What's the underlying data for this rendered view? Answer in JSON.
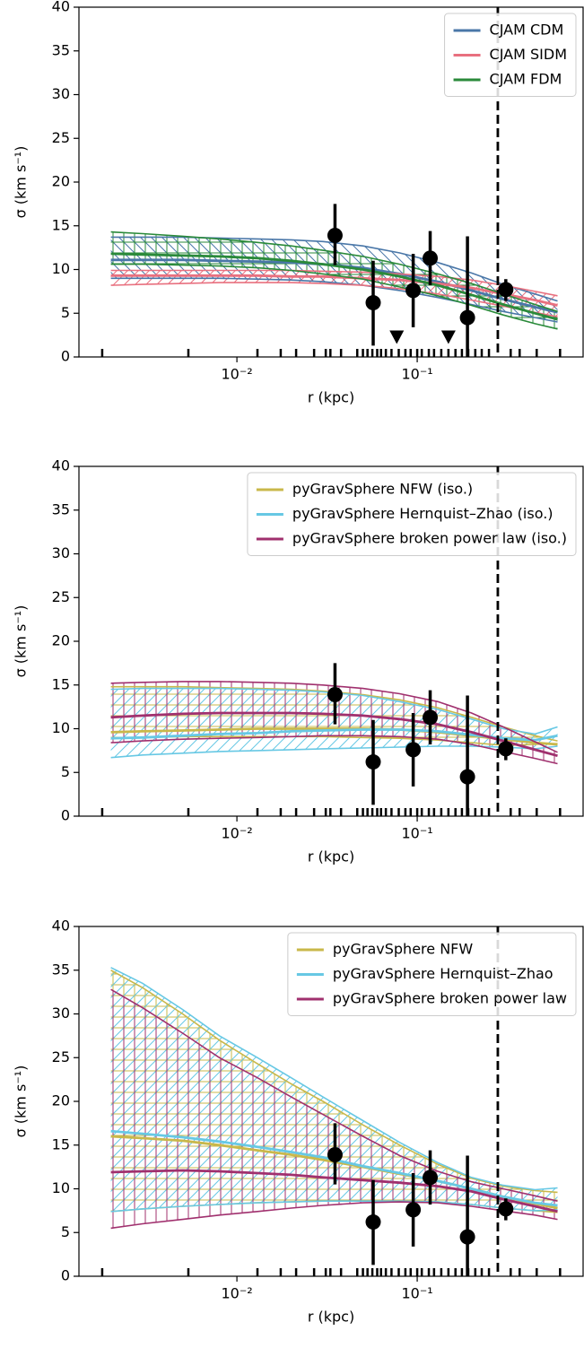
{
  "chart_data": [
    {
      "type": "line",
      "xlabel": "r (kpc)",
      "ylabel": "σ (km s⁻¹)",
      "log_x": true,
      "xlim": [
        0.00133,
        0.832
      ],
      "ylim": [
        0,
        40
      ],
      "xticks": [
        {
          "value": 0.01,
          "label": "10⁻²"
        },
        {
          "value": 0.1,
          "label": "10⁻¹"
        }
      ],
      "yticks": [
        0,
        5,
        10,
        15,
        20,
        25,
        30,
        35,
        40
      ],
      "legend": "upper right",
      "x": [
        0.002,
        0.003,
        0.005,
        0.008,
        0.013,
        0.02,
        0.03,
        0.05,
        0.08,
        0.13,
        0.2,
        0.3,
        0.45,
        0.6
      ],
      "series": [
        {
          "name": "CJAM CDM",
          "color": "#4a77a8",
          "hatch": "\\",
          "values": [
            11.1,
            11.1,
            11.1,
            11.0,
            10.9,
            10.8,
            10.6,
            10.2,
            9.5,
            8.6,
            7.6,
            6.6,
            5.7,
            5.1
          ],
          "upper": [
            13.7,
            13.7,
            13.7,
            13.6,
            13.5,
            13.4,
            13.2,
            12.7,
            11.9,
            10.8,
            9.6,
            8.3,
            7.2,
            6.4
          ],
          "lower": [
            9.0,
            9.0,
            9.0,
            9.0,
            8.9,
            8.8,
            8.6,
            8.2,
            7.6,
            6.8,
            6.0,
            5.2,
            4.5,
            4.0
          ]
        },
        {
          "name": "CJAM SIDM",
          "color": "#e8707f",
          "hatch": "/",
          "values": [
            9.3,
            9.3,
            9.3,
            9.3,
            9.3,
            9.2,
            9.2,
            9.0,
            8.8,
            8.4,
            7.9,
            7.2,
            6.5,
            5.9
          ],
          "upper": [
            9.9,
            9.9,
            9.9,
            9.9,
            9.9,
            9.9,
            9.8,
            9.7,
            9.5,
            9.2,
            8.8,
            8.2,
            7.5,
            7.0
          ],
          "lower": [
            8.2,
            8.3,
            8.4,
            8.5,
            8.5,
            8.5,
            8.4,
            8.2,
            7.8,
            7.2,
            6.5,
            5.8,
            5.1,
            4.6
          ]
        },
        {
          "name": "CJAM FDM",
          "color": "#2a8a3a",
          "hatch": "+",
          "values": [
            11.8,
            11.7,
            11.6,
            11.5,
            11.3,
            11.0,
            10.6,
            10.0,
            9.2,
            8.2,
            7.1,
            6.0,
            5.0,
            4.3
          ],
          "upper": [
            14.3,
            14.1,
            13.8,
            13.5,
            13.1,
            12.7,
            12.2,
            11.5,
            10.6,
            9.5,
            8.4,
            7.2,
            6.0,
            5.2
          ],
          "lower": [
            10.6,
            10.6,
            10.5,
            10.4,
            10.2,
            9.9,
            9.5,
            8.9,
            8.0,
            7.0,
            5.9,
            4.8,
            3.8,
            3.2
          ]
        }
      ],
      "observations": {
        "x": [
          0.035,
          0.057,
          0.095,
          0.118,
          0.19,
          0.31
        ],
        "values": [
          13.9,
          6.2,
          7.6,
          11.3,
          4.5,
          7.7
        ],
        "error_low": [
          3.4,
          4.9,
          4.2,
          3.1,
          4.5,
          1.3
        ],
        "error_high": [
          3.6,
          4.8,
          4.2,
          3.1,
          9.3,
          1.2
        ]
      },
      "upper_limits": {
        "x": [
          0.077,
          0.149
        ],
        "values": [
          2.2,
          2.2
        ]
      },
      "vline": 0.28,
      "rug_x": [
        0.00179,
        0.00538,
        0.013,
        0.0175,
        0.0213,
        0.0268,
        0.0311,
        0.033,
        0.0378,
        0.0465,
        0.05,
        0.053,
        0.0564,
        0.06,
        0.063,
        0.067,
        0.072,
        0.079,
        0.086,
        0.092,
        0.1,
        0.106,
        0.116,
        0.124,
        0.136,
        0.149,
        0.163,
        0.177,
        0.192,
        0.21,
        0.228,
        0.25,
        0.33,
        0.37,
        0.46,
        0.62
      ]
    },
    {
      "type": "line",
      "xlabel": "r (kpc)",
      "ylabel": "σ (km s⁻¹)",
      "log_x": true,
      "xlim": [
        0.00133,
        0.832
      ],
      "ylim": [
        0,
        40
      ],
      "xticks": [
        {
          "value": 0.01,
          "label": "10⁻²"
        },
        {
          "value": 0.1,
          "label": "10⁻¹"
        }
      ],
      "yticks": [
        0,
        5,
        10,
        15,
        20,
        25,
        30,
        35,
        40
      ],
      "legend": "upper right",
      "x": [
        0.002,
        0.003,
        0.005,
        0.008,
        0.013,
        0.02,
        0.03,
        0.05,
        0.08,
        0.13,
        0.2,
        0.3,
        0.45,
        0.6
      ],
      "series": [
        {
          "name": "pyGravSphere NFW (iso.)",
          "color": "#c9b84a",
          "hatch": "-",
          "values": [
            9.6,
            9.7,
            9.8,
            9.9,
            10.0,
            10.0,
            10.0,
            10.0,
            9.9,
            9.6,
            9.2,
            8.8,
            8.4,
            8.2
          ],
          "upper": [
            14.8,
            14.8,
            14.8,
            14.7,
            14.6,
            14.5,
            14.3,
            13.9,
            13.3,
            12.4,
            11.3,
            10.2,
            9.2,
            8.6
          ],
          "lower": [
            9.0,
            9.0,
            9.1,
            9.1,
            9.1,
            9.1,
            9.1,
            9.0,
            8.9,
            8.7,
            8.4,
            8.1,
            8.2,
            8.3
          ]
        },
        {
          "name": "pyGravSphere Hernquist–Zhao (iso.)",
          "color": "#67c8e4",
          "hatch": "/",
          "values": [
            8.9,
            9.0,
            9.2,
            9.4,
            9.5,
            9.7,
            9.8,
            9.9,
            9.9,
            9.7,
            9.3,
            8.9,
            8.7,
            9.2
          ],
          "upper": [
            14.5,
            14.6,
            14.6,
            14.6,
            14.5,
            14.4,
            14.2,
            13.8,
            13.1,
            12.2,
            11.1,
            10.0,
            9.4,
            10.2
          ],
          "lower": [
            6.7,
            7.0,
            7.2,
            7.4,
            7.5,
            7.6,
            7.7,
            7.8,
            7.9,
            8.0,
            8.0,
            7.9,
            7.7,
            8.0
          ]
        },
        {
          "name": "pyGravSphere broken power law (iso.)",
          "color": "#a0306e",
          "hatch": "|",
          "values": [
            11.3,
            11.5,
            11.7,
            11.8,
            11.8,
            11.8,
            11.7,
            11.5,
            11.1,
            10.5,
            9.6,
            8.6,
            7.6,
            6.9
          ],
          "upper": [
            15.2,
            15.3,
            15.4,
            15.4,
            15.3,
            15.2,
            15.0,
            14.6,
            14.0,
            13.1,
            11.8,
            10.2,
            8.5,
            7.3
          ],
          "lower": [
            8.4,
            8.6,
            8.8,
            8.9,
            9.0,
            9.1,
            9.2,
            9.2,
            9.1,
            8.8,
            8.2,
            7.4,
            6.6,
            6.0
          ]
        }
      ],
      "observations": {
        "x": [
          0.035,
          0.057,
          0.095,
          0.118,
          0.19,
          0.31
        ],
        "values": [
          13.9,
          6.2,
          7.6,
          11.3,
          4.5,
          7.7
        ],
        "error_low": [
          3.4,
          4.9,
          4.2,
          3.1,
          4.5,
          1.3
        ],
        "error_high": [
          3.6,
          4.8,
          4.2,
          3.1,
          9.3,
          1.2
        ]
      },
      "vline": 0.28,
      "rug_x": [
        0.00179,
        0.00538,
        0.013,
        0.0175,
        0.0213,
        0.0268,
        0.0311,
        0.033,
        0.0378,
        0.0465,
        0.05,
        0.053,
        0.0564,
        0.06,
        0.063,
        0.067,
        0.072,
        0.079,
        0.086,
        0.092,
        0.1,
        0.106,
        0.116,
        0.124,
        0.136,
        0.149,
        0.163,
        0.177,
        0.192,
        0.21,
        0.228,
        0.25,
        0.33,
        0.37,
        0.46,
        0.62
      ]
    },
    {
      "type": "line",
      "xlabel": "r (kpc)",
      "ylabel": "σ (km s⁻¹)",
      "log_x": true,
      "xlim": [
        0.00133,
        0.832
      ],
      "ylim": [
        0,
        40
      ],
      "xticks": [
        {
          "value": 0.01,
          "label": "10⁻²"
        },
        {
          "value": 0.1,
          "label": "10⁻¹"
        }
      ],
      "yticks": [
        0,
        5,
        10,
        15,
        20,
        25,
        30,
        35,
        40
      ],
      "legend": "upper right",
      "x": [
        0.002,
        0.003,
        0.005,
        0.008,
        0.013,
        0.02,
        0.03,
        0.05,
        0.08,
        0.13,
        0.2,
        0.3,
        0.45,
        0.6
      ],
      "series": [
        {
          "name": "pyGravSphere NFW",
          "color": "#c9b84a",
          "hatch": "+",
          "values": [
            16.0,
            15.8,
            15.5,
            15.0,
            14.4,
            13.9,
            13.3,
            12.5,
            11.7,
            10.9,
            10.0,
            9.1,
            8.3,
            7.8
          ],
          "upper": [
            35.0,
            33.0,
            30.0,
            27.0,
            24.3,
            22.0,
            20.0,
            17.3,
            15.0,
            12.8,
            11.2,
            10.3,
            9.8,
            9.6
          ],
          "lower": [
            7.4,
            7.7,
            8.0,
            8.2,
            8.4,
            8.5,
            8.6,
            8.6,
            8.6,
            8.5,
            8.2,
            7.8,
            7.5,
            7.3
          ]
        },
        {
          "name": "pyGravSphere Hernquist–Zhao",
          "color": "#67c8e4",
          "hatch": "/",
          "values": [
            16.6,
            16.3,
            15.9,
            15.4,
            14.8,
            14.2,
            13.6,
            12.6,
            11.8,
            10.9,
            10.0,
            9.1,
            8.4,
            8.1
          ],
          "upper": [
            35.3,
            33.5,
            30.5,
            27.5,
            25.0,
            22.7,
            20.5,
            17.8,
            15.3,
            13.0,
            11.3,
            10.4,
            9.9,
            10.1
          ],
          "lower": [
            7.4,
            7.7,
            8.0,
            8.2,
            8.4,
            8.5,
            8.6,
            8.6,
            8.6,
            8.5,
            8.2,
            7.8,
            7.5,
            7.6
          ]
        },
        {
          "name": "pyGravSphere broken power law",
          "color": "#a0306e",
          "hatch": "|",
          "values": [
            11.9,
            12.0,
            12.1,
            12.0,
            11.8,
            11.6,
            11.3,
            11.0,
            10.7,
            10.3,
            9.7,
            8.8,
            8.0,
            7.4
          ],
          "upper": [
            32.8,
            30.7,
            27.8,
            25.0,
            22.7,
            20.5,
            18.5,
            16.0,
            13.8,
            12.0,
            10.8,
            10.0,
            9.2,
            8.6
          ],
          "lower": [
            5.5,
            6.0,
            6.5,
            7.0,
            7.4,
            7.8,
            8.1,
            8.4,
            8.5,
            8.4,
            8.0,
            7.5,
            7.0,
            6.5
          ]
        }
      ],
      "observations": {
        "x": [
          0.035,
          0.057,
          0.095,
          0.118,
          0.19,
          0.31
        ],
        "values": [
          13.9,
          6.2,
          7.6,
          11.3,
          4.5,
          7.7
        ],
        "error_low": [
          3.4,
          4.9,
          4.2,
          3.1,
          4.5,
          1.3
        ],
        "error_high": [
          3.6,
          4.8,
          4.2,
          3.1,
          9.3,
          1.2
        ]
      },
      "vline": 0.28,
      "rug_x": [
        0.00179,
        0.00538,
        0.013,
        0.0175,
        0.0213,
        0.0268,
        0.0311,
        0.033,
        0.0378,
        0.0465,
        0.05,
        0.053,
        0.0564,
        0.06,
        0.063,
        0.067,
        0.072,
        0.079,
        0.086,
        0.092,
        0.1,
        0.106,
        0.116,
        0.124,
        0.136,
        0.149,
        0.163,
        0.177,
        0.192,
        0.21,
        0.228,
        0.25,
        0.33,
        0.37,
        0.46,
        0.62
      ]
    }
  ]
}
